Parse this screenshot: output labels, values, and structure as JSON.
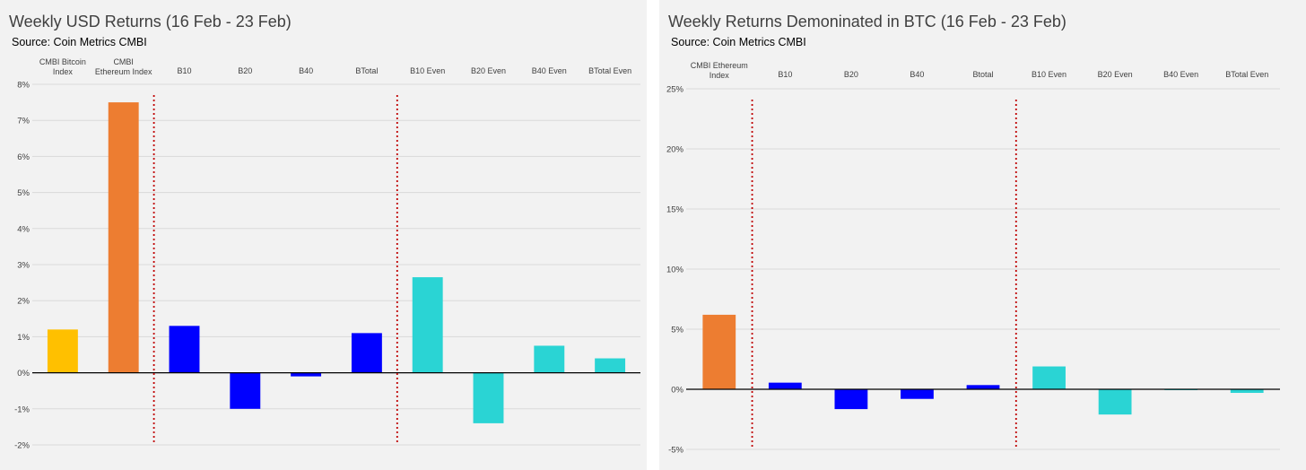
{
  "colors": {
    "panel_bg": "#f2f2f2",
    "grid": "#d9d9d9",
    "axis_zero": "#000000",
    "divider": "#c00000",
    "bitcoin_index": "#ffc000",
    "ethereum_index": "#ed7d31",
    "market_cap_index": "#0000ff",
    "even_weight_index": "#2ad4d4"
  },
  "chart_data": [
    {
      "type": "bar",
      "title": "Weekly USD Returns (16 Feb - 23 Feb)",
      "subtitle": "Source: Coin Metrics CMBI",
      "xlabel": "",
      "ylabel": "",
      "x_axis_position": "top",
      "ylim": [
        -2,
        8
      ],
      "yticks": [
        8,
        7,
        6,
        5,
        4,
        3,
        2,
        1,
        0,
        -1,
        -2
      ],
      "ytick_labels": [
        "8%",
        "7%",
        "6%",
        "5%",
        "4%",
        "3%",
        "2%",
        "1%",
        "0%",
        "-1%",
        "-2%"
      ],
      "grid": true,
      "legend": "none",
      "categories": [
        [
          "CMBI Bitcoin",
          "Index"
        ],
        [
          "CMBI",
          "Ethereum Index"
        ],
        [
          "B10"
        ],
        [
          "B20"
        ],
        [
          "B40"
        ],
        [
          "BTotal"
        ],
        [
          "B10 Even"
        ],
        [
          "B20 Even"
        ],
        [
          "B40 Even"
        ],
        [
          "BTotal Even"
        ]
      ],
      "values": [
        1.2,
        7.5,
        1.3,
        -1.0,
        -0.1,
        1.1,
        2.65,
        -1.4,
        0.75,
        0.4
      ],
      "bar_colors": [
        "bitcoin_index",
        "ethereum_index",
        "market_cap_index",
        "market_cap_index",
        "market_cap_index",
        "market_cap_index",
        "even_weight_index",
        "even_weight_index",
        "even_weight_index",
        "even_weight_index"
      ],
      "dividers_after_category": [
        2,
        6
      ],
      "plot_box": [
        36,
        94,
        714,
        496
      ]
    },
    {
      "type": "bar",
      "title": "Weekly Returns Demoninated in BTC (16 Feb - 23 Feb)",
      "subtitle": "Source: Coin Metrics CMBI",
      "xlabel": "",
      "ylabel": "",
      "x_axis_position": "top",
      "ylim": [
        -5,
        25
      ],
      "yticks": [
        25,
        20,
        15,
        10,
        5,
        0,
        -5
      ],
      "ytick_labels": [
        "25%",
        "20%",
        "15%",
        "10%",
        "5%",
        "0%",
        "-5%"
      ],
      "grid": true,
      "legend": "none",
      "categories": [
        [
          "CMBI Ethereum",
          "Index"
        ],
        [
          "B10"
        ],
        [
          "B20"
        ],
        [
          "B40"
        ],
        [
          "Btotal"
        ],
        [
          "B10 Even"
        ],
        [
          "B20 Even"
        ],
        [
          "B40 Even"
        ],
        [
          "BTotal Even"
        ]
      ],
      "values": [
        6.2,
        0.55,
        -1.65,
        -0.8,
        0.35,
        1.9,
        -2.1,
        -0.05,
        -0.3
      ],
      "bar_colors": [
        "ethereum_index",
        "market_cap_index",
        "market_cap_index",
        "market_cap_index",
        "market_cap_index",
        "even_weight_index",
        "even_weight_index",
        "even_weight_index",
        "even_weight_index"
      ],
      "dividers_after_category": [
        1,
        5
      ],
      "plot_box": [
        30,
        99,
        692,
        501
      ]
    }
  ]
}
